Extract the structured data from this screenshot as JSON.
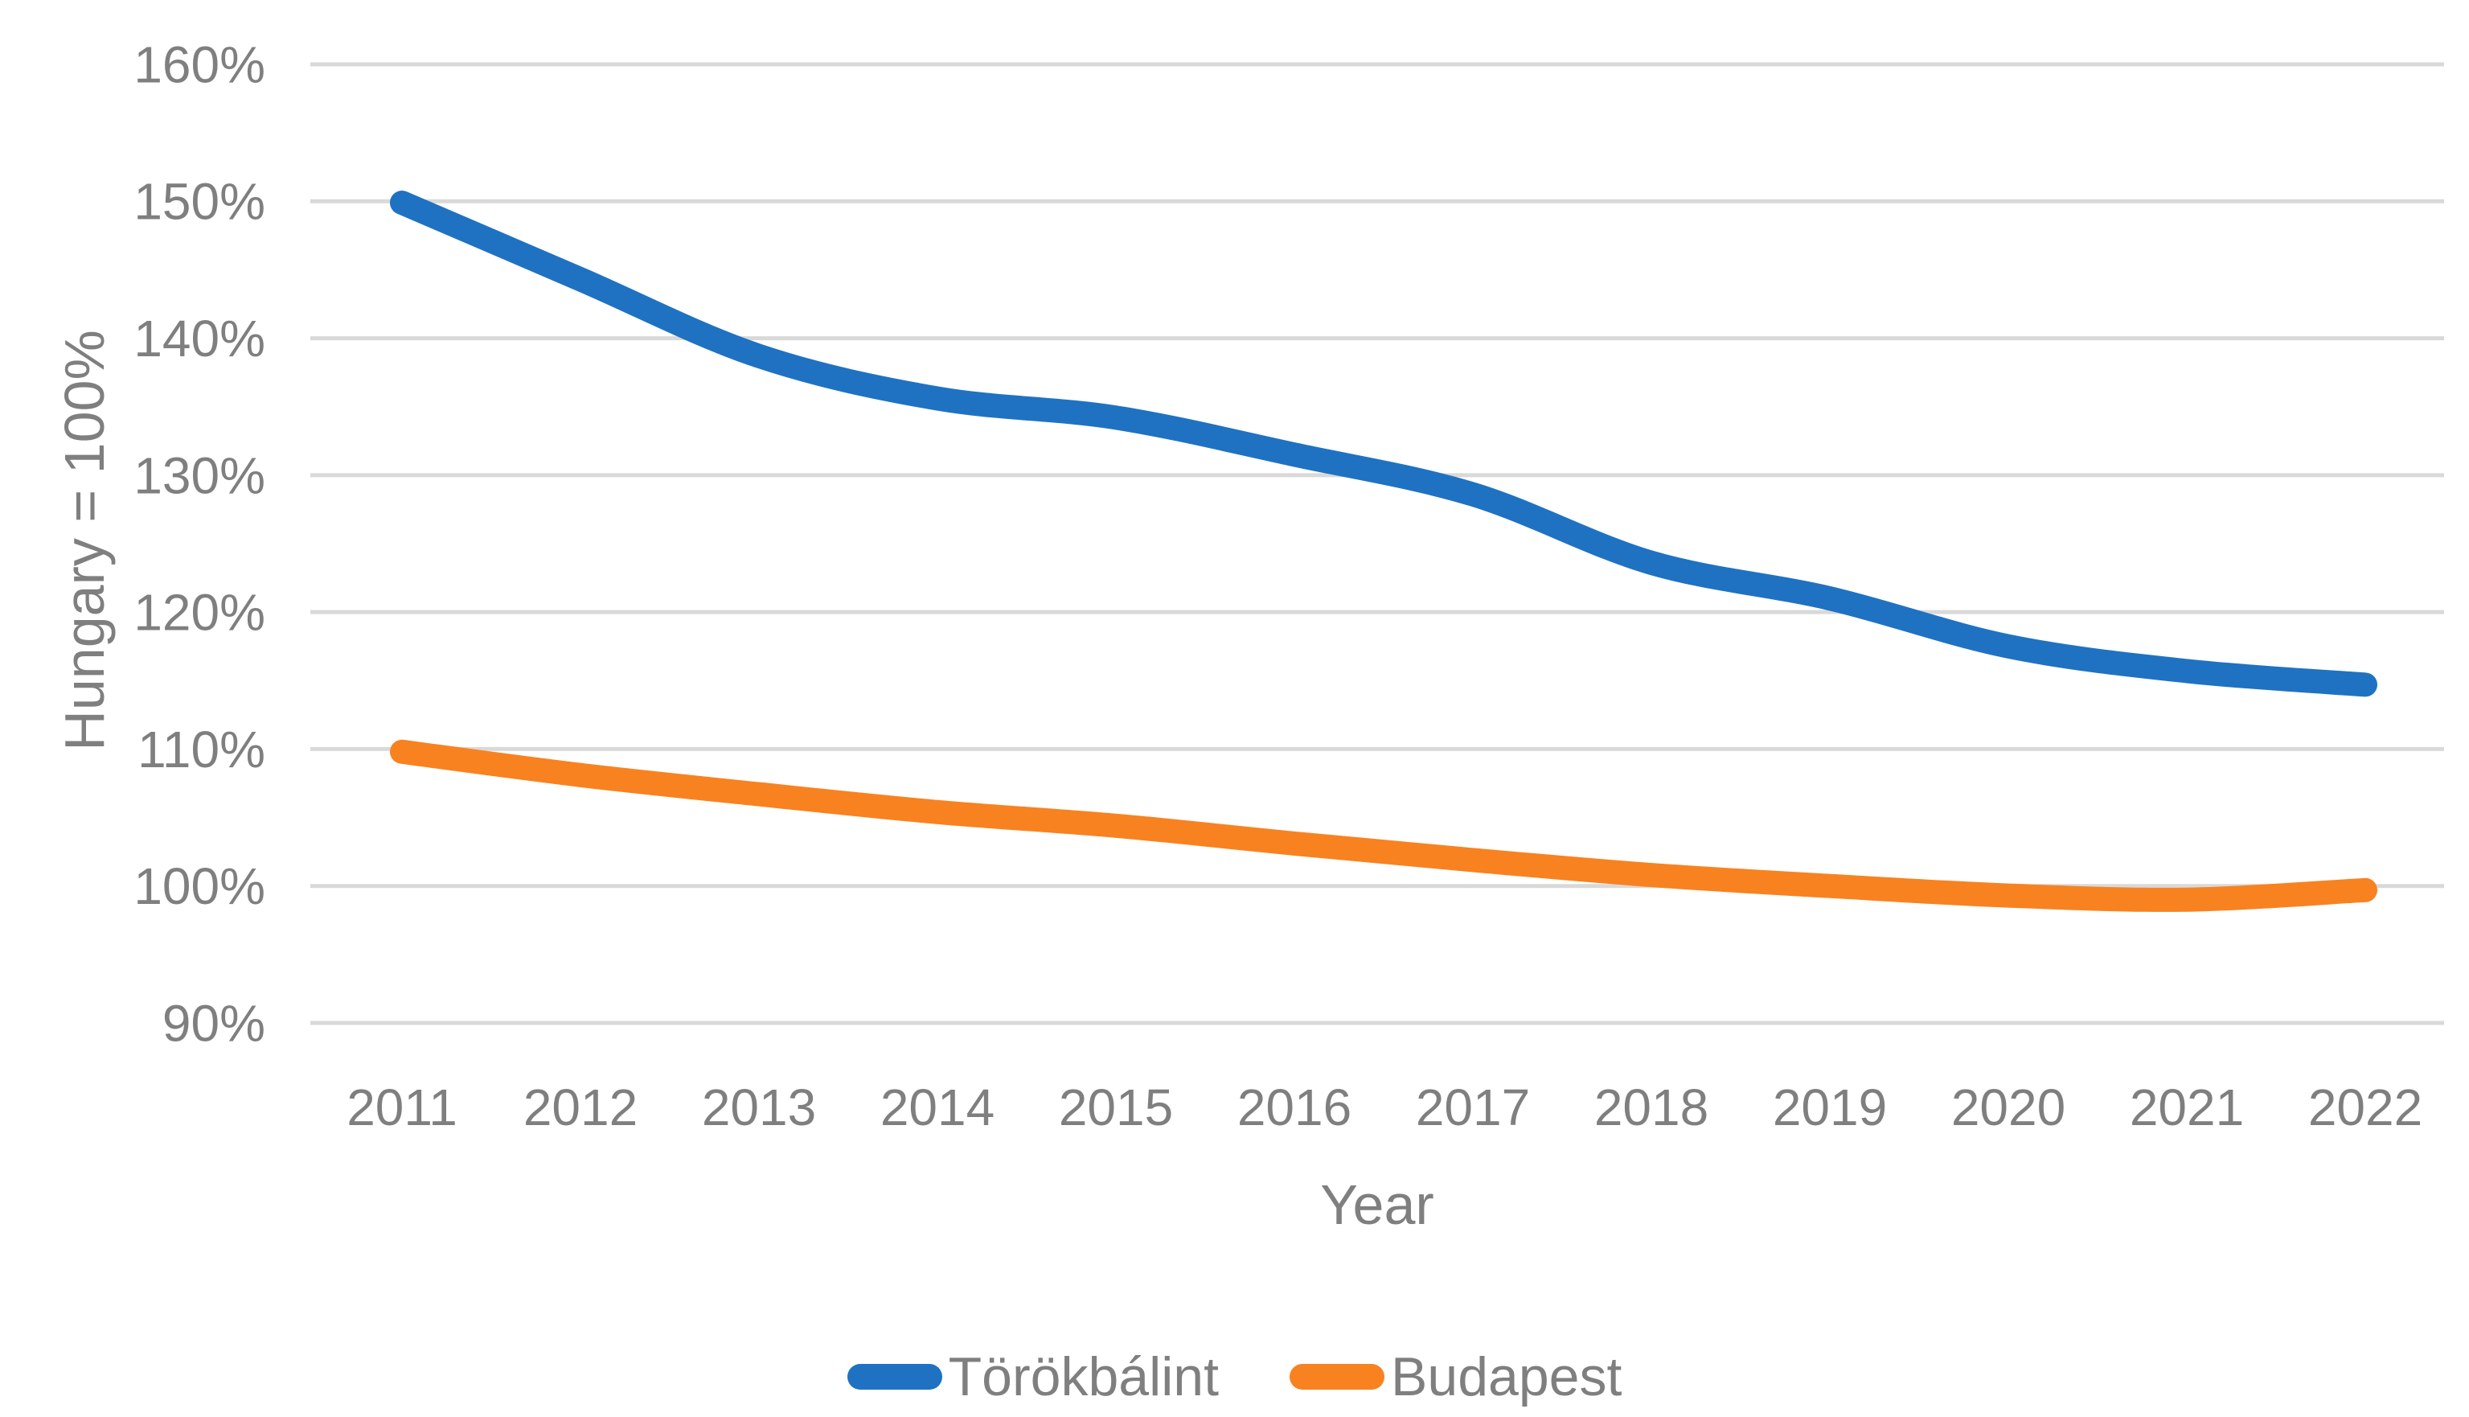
{
  "chart_data": {
    "type": "line",
    "title": "",
    "xlabel": "Year",
    "ylabel": "Hungary = 100%",
    "categories": [
      "2011",
      "2012",
      "2013",
      "2014",
      "2015",
      "2016",
      "2017",
      "2018",
      "2019",
      "2020",
      "2021",
      "2022"
    ],
    "series": [
      {
        "name": "Törökbálint",
        "color": "#1F72C2",
        "values": [
          149.9,
          144.3,
          138.7,
          135.6,
          134.2,
          131.5,
          128.6,
          123.6,
          121.0,
          117.5,
          115.7,
          114.7
        ]
      },
      {
        "name": "Budapest",
        "color": "#F88220",
        "values": [
          109.8,
          108.1,
          106.7,
          105.4,
          104.4,
          103.1,
          101.9,
          100.8,
          100.0,
          99.3,
          99.0,
          99.7
        ]
      }
    ],
    "ytick_labels": [
      "160%",
      "150%",
      "140%",
      "130%",
      "120%",
      "110%",
      "100%",
      "90%"
    ],
    "ytick_values": [
      160,
      150,
      140,
      130,
      120,
      110,
      100,
      90
    ],
    "ylim": [
      90,
      160
    ],
    "grid": "horizontal",
    "legend_position": "bottom"
  },
  "colors": {
    "gridline": "#D9D9D9",
    "axis_text": "#7F7F7F",
    "background": "#FFFFFF"
  }
}
